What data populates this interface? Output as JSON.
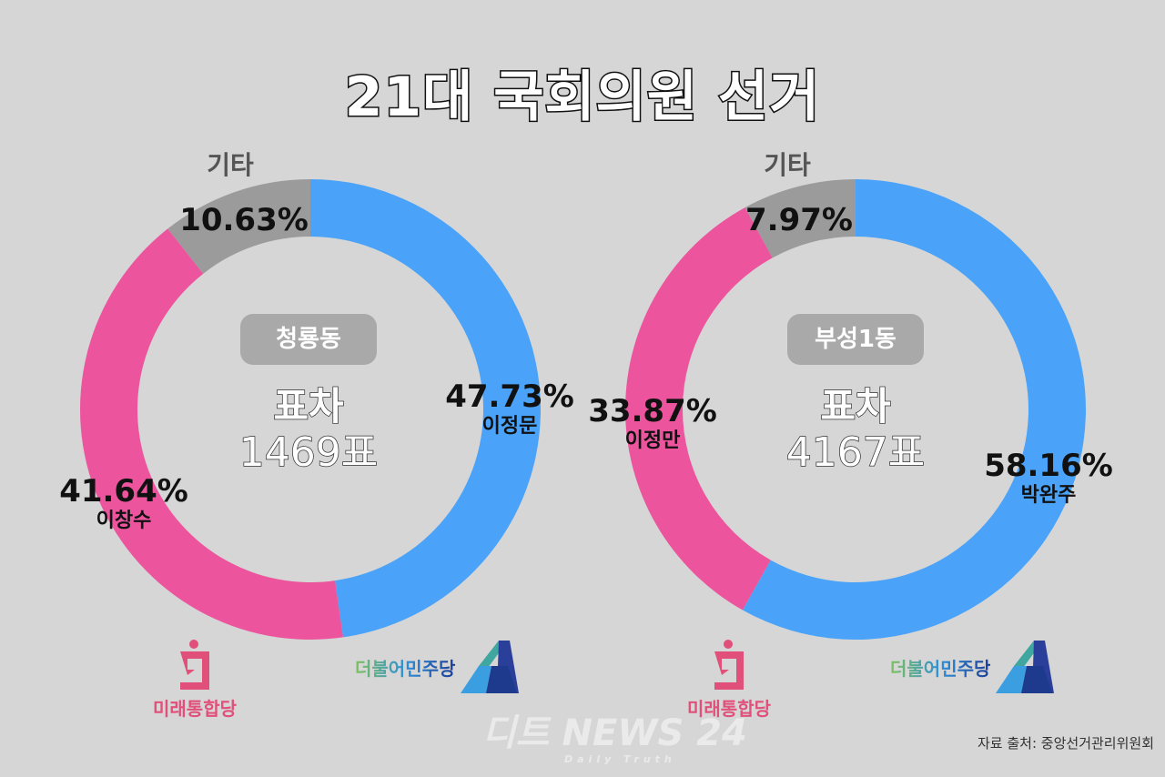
{
  "title": "21대 국회의원 선거",
  "colors": {
    "blue": "#4aa3f8",
    "pink": "#ec559d",
    "gray": "#9b9b9b",
    "background": "#d6d6d6"
  },
  "chart_data": [
    {
      "type": "pie",
      "donut": true,
      "district": "청룡동",
      "other_label": "기타",
      "gap_label": "표차",
      "gap_value": "1469표",
      "slices": [
        {
          "candidate": "이정문",
          "value": 47.73,
          "label": "47.73%",
          "color": "#4aa3f8"
        },
        {
          "candidate": "이창수",
          "value": 41.64,
          "label": "41.64%",
          "color": "#ec559d"
        },
        {
          "candidate": "",
          "value": 10.63,
          "label": "10.63%",
          "color": "#9b9b9b"
        }
      ]
    },
    {
      "type": "pie",
      "donut": true,
      "district": "부성1동",
      "other_label": "기타",
      "gap_label": "표차",
      "gap_value": "4167표",
      "slices": [
        {
          "candidate": "박완주",
          "value": 58.16,
          "label": "58.16%",
          "color": "#4aa3f8"
        },
        {
          "candidate": "이정만",
          "value": 33.87,
          "label": "33.87%",
          "color": "#ec559d"
        },
        {
          "candidate": "",
          "value": 7.97,
          "label": "7.97%",
          "color": "#9b9b9b"
        }
      ]
    }
  ],
  "logos": {
    "ppp": "미래통합당",
    "dem": "더불어민주당"
  },
  "watermark": {
    "main": "디트 NEWS 24",
    "sub": "Daily Truth"
  },
  "source": "자료 출처: 중앙선거관리위원회"
}
